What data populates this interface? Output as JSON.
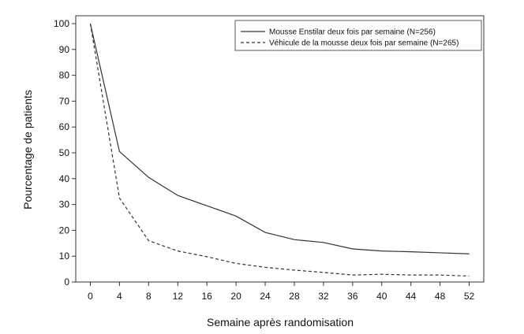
{
  "chart_data": {
    "type": "line",
    "title": "",
    "xlabel": "Semaine après randomisation",
    "ylabel": "Pourcentage de patients",
    "x": [
      0,
      4,
      8,
      12,
      16,
      20,
      24,
      28,
      32,
      36,
      40,
      44,
      48,
      52
    ],
    "xticks": [
      "0",
      "4",
      "8",
      "12",
      "16",
      "20",
      "24",
      "28",
      "32",
      "36",
      "40",
      "44",
      "48",
      "52"
    ],
    "yticks": [
      "0",
      "10",
      "20",
      "30",
      "40",
      "50",
      "60",
      "70",
      "80",
      "90",
      "100"
    ],
    "xlim": [
      -2,
      54
    ],
    "ylim": [
      0,
      100
    ],
    "grid": false,
    "legend_position": "top-right",
    "series": [
      {
        "name": "Mousse Enstilar deux fois par semaine (N=256)",
        "style": "solid",
        "color": "#333333",
        "values": [
          100,
          50.5,
          40.5,
          33.5,
          29.5,
          25.5,
          19.2,
          16.4,
          15.3,
          12.8,
          12.0,
          11.7,
          11.3,
          10.9
        ]
      },
      {
        "name": "Véhicule de la mousse deux fois par semaine (N=265)",
        "style": "dashed",
        "color": "#333333",
        "values": [
          100,
          32.5,
          16.0,
          12.0,
          9.8,
          7.2,
          5.7,
          4.6,
          3.7,
          2.7,
          3.0,
          2.7,
          2.7,
          2.3
        ]
      }
    ]
  }
}
